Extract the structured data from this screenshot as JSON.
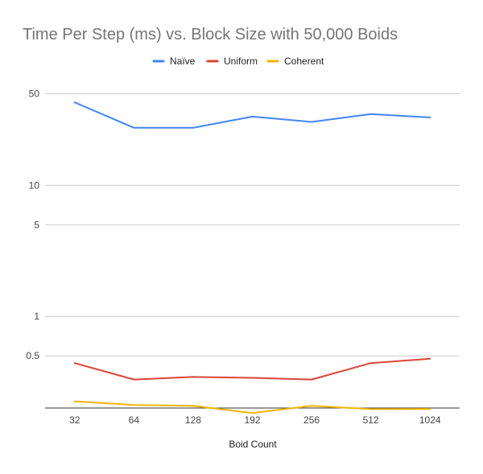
{
  "chart_data": {
    "type": "line",
    "title": "Time Per Step (ms) vs. Block Size with 50,000 Boids",
    "xlabel": "Boid Count",
    "ylabel": "",
    "yscale": "log",
    "ylim": [
      0.2,
      65
    ],
    "categories": [
      "32",
      "64",
      "128",
      "192",
      "256",
      "512",
      "1024"
    ],
    "y_ticks": [
      0.5,
      1,
      5,
      10,
      50
    ],
    "y_tick_labels": [
      "0.5",
      "1",
      "5",
      "10",
      "50"
    ],
    "grid": true,
    "legend_position": "top",
    "series": [
      {
        "name": "Naïve",
        "color": "#4285F4",
        "values": [
          43,
          27.5,
          27.5,
          33.5,
          30.5,
          35,
          33
        ]
      },
      {
        "name": "Uniform",
        "color": "#DB4437",
        "values": [
          0.44,
          0.33,
          0.345,
          0.34,
          0.33,
          0.44,
          0.475
        ]
      },
      {
        "name": "Coherent",
        "color": "#F4B400",
        "values": [
          0.225,
          0.211,
          0.208,
          0.183,
          0.208,
          0.196,
          0.197
        ]
      }
    ]
  }
}
